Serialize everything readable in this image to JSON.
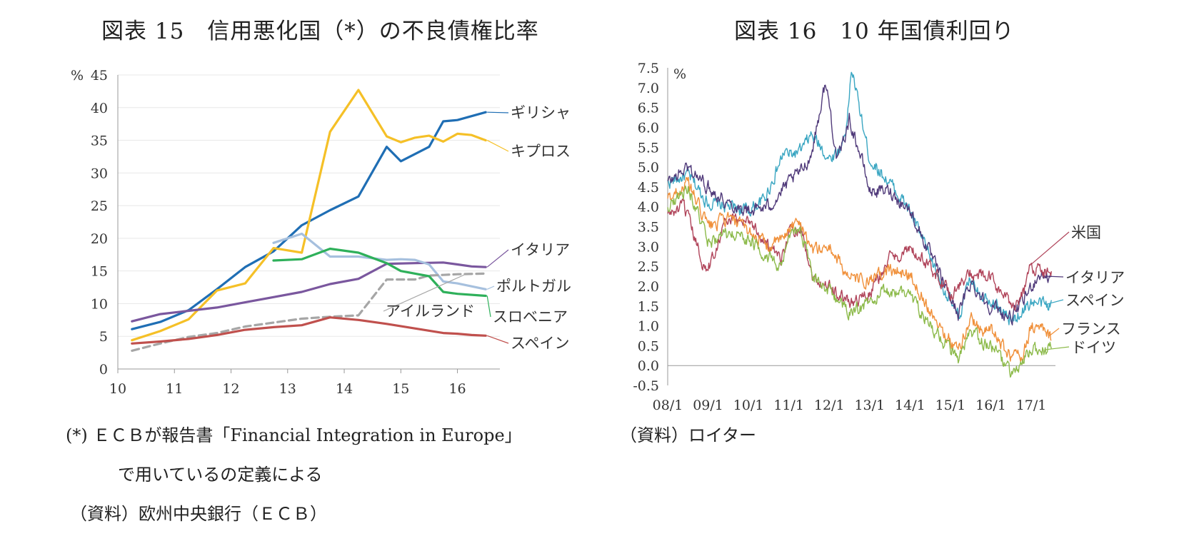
{
  "titles": {
    "left": "図表 15　信用悪化国（*）の不良債権比率",
    "right": "図表 16　10 年国債利回り"
  },
  "notes": {
    "left_line1": "(*) ＥＣＢが報告書「Financial Integration in Europe」",
    "left_line2": "で用いているの定義による",
    "left_source": "（資料）欧州中央銀行（ＥＣＢ）",
    "right_source": "（資料）ロイター"
  },
  "colors": {
    "greece": "#1f6eb4",
    "cyprus": "#f5c027",
    "italy": "#7a579e",
    "portugal": "#a6c0de",
    "ireland": "#a6a6a6",
    "slovenia": "#2eb05a",
    "spain": "#c0504d",
    "us": "#b0445a",
    "italy_r": "#503a7a",
    "spain_r": "#3aa6c2",
    "france": "#f0903a",
    "germany": "#8cba4a"
  },
  "chart_data": [
    {
      "type": "line",
      "ylabel": "%",
      "ylim": [
        0,
        45
      ],
      "xlim": [
        10,
        16.75
      ],
      "yticks": [
        "0",
        "5",
        "10",
        "15",
        "20",
        "25",
        "30",
        "35",
        "40",
        "45"
      ],
      "xticks": [
        "10",
        "11",
        "12",
        "13",
        "14",
        "15",
        "16"
      ],
      "series": [
        {
          "name": "ギリシャ",
          "color": "#1f6eb4",
          "dashed": false,
          "points": [
            [
              10.25,
              6.1
            ],
            [
              10.75,
              7.2
            ],
            [
              11.25,
              9.0
            ],
            [
              11.75,
              12.2
            ],
            [
              12.25,
              15.6
            ],
            [
              12.75,
              18.0
            ],
            [
              13.25,
              22.0
            ],
            [
              13.75,
              24.3
            ],
            [
              14.25,
              26.4
            ],
            [
              14.75,
              34.0
            ],
            [
              15.0,
              31.8
            ],
            [
              15.5,
              34.0
            ],
            [
              15.75,
              37.9
            ],
            [
              16.0,
              38.1
            ],
            [
              16.5,
              39.3
            ]
          ]
        },
        {
          "name": "キプロス",
          "color": "#f5c027",
          "dashed": false,
          "points": [
            [
              10.25,
              4.4
            ],
            [
              10.75,
              5.8
            ],
            [
              11.25,
              7.6
            ],
            [
              11.75,
              12.0
            ],
            [
              12.25,
              13.1
            ],
            [
              12.75,
              18.5
            ],
            [
              13.25,
              17.8
            ],
            [
              13.75,
              36.3
            ],
            [
              14.25,
              42.7
            ],
            [
              14.75,
              35.6
            ],
            [
              15.0,
              34.7
            ],
            [
              15.25,
              35.4
            ],
            [
              15.5,
              35.7
            ],
            [
              15.75,
              34.8
            ],
            [
              16.0,
              36.0
            ],
            [
              16.25,
              35.8
            ],
            [
              16.5,
              35.0
            ]
          ]
        },
        {
          "name": "イタリア",
          "color": "#7a579e",
          "dashed": false,
          "points": [
            [
              10.25,
              7.3
            ],
            [
              10.75,
              8.4
            ],
            [
              11.25,
              8.9
            ],
            [
              11.75,
              9.4
            ],
            [
              12.25,
              10.2
            ],
            [
              12.75,
              11.0
            ],
            [
              13.25,
              11.8
            ],
            [
              13.75,
              13.0
            ],
            [
              14.25,
              13.8
            ],
            [
              14.75,
              16.1
            ],
            [
              15.25,
              16.2
            ],
            [
              15.75,
              16.3
            ],
            [
              16.0,
              16.0
            ],
            [
              16.25,
              15.7
            ],
            [
              16.5,
              15.6
            ]
          ]
        },
        {
          "name": "ポルトガル",
          "color": "#a6c0de",
          "dashed": false,
          "points": [
            [
              12.75,
              19.3
            ],
            [
              13.25,
              20.7
            ],
            [
              13.75,
              17.2
            ],
            [
              14.25,
              17.2
            ],
            [
              14.75,
              16.7
            ],
            [
              15.0,
              16.8
            ],
            [
              15.25,
              16.7
            ],
            [
              15.5,
              16.0
            ],
            [
              15.75,
              13.4
            ],
            [
              16.0,
              13.1
            ],
            [
              16.5,
              12.2
            ]
          ]
        },
        {
          "name": "アイルランド",
          "color": "#a6a6a6",
          "dashed": true,
          "points": [
            [
              10.25,
              2.8
            ],
            [
              10.75,
              3.9
            ],
            [
              11.25,
              4.9
            ],
            [
              11.75,
              5.5
            ],
            [
              12.25,
              6.5
            ],
            [
              12.75,
              7.1
            ],
            [
              13.25,
              7.7
            ],
            [
              13.75,
              8.0
            ],
            [
              14.25,
              8.2
            ],
            [
              14.75,
              13.7
            ],
            [
              15.25,
              13.7
            ],
            [
              15.5,
              14.3
            ],
            [
              15.75,
              14.4
            ],
            [
              16.0,
              14.5
            ],
            [
              16.5,
              14.6
            ]
          ]
        },
        {
          "name": "スロベニア",
          "color": "#2eb05a",
          "dashed": false,
          "points": [
            [
              12.75,
              16.6
            ],
            [
              13.25,
              16.8
            ],
            [
              13.75,
              18.4
            ],
            [
              14.25,
              17.8
            ],
            [
              14.75,
              16.2
            ],
            [
              15.0,
              15.0
            ],
            [
              15.5,
              14.2
            ],
            [
              15.75,
              11.8
            ],
            [
              16.0,
              11.5
            ],
            [
              16.5,
              11.2
            ]
          ]
        },
        {
          "name": "スペイン",
          "color": "#c0504d",
          "dashed": false,
          "points": [
            [
              10.25,
              3.9
            ],
            [
              10.75,
              4.2
            ],
            [
              11.25,
              4.6
            ],
            [
              11.75,
              5.2
            ],
            [
              12.25,
              6.0
            ],
            [
              12.75,
              6.4
            ],
            [
              13.25,
              6.7
            ],
            [
              13.75,
              7.9
            ],
            [
              14.25,
              7.5
            ],
            [
              14.75,
              6.9
            ],
            [
              15.25,
              6.2
            ],
            [
              15.75,
              5.5
            ],
            [
              16.0,
              5.4
            ],
            [
              16.25,
              5.2
            ],
            [
              16.5,
              5.1
            ]
          ]
        }
      ]
    },
    {
      "type": "line",
      "ylabel": "%",
      "ylim": [
        -0.5,
        7.5
      ],
      "xlim": [
        2008,
        2017.6
      ],
      "yticks": [
        "-0.5",
        "0.0",
        "0.5",
        "1.0",
        "1.5",
        "2.0",
        "2.5",
        "3.0",
        "3.5",
        "4.0",
        "4.5",
        "5.0",
        "5.5",
        "6.0",
        "6.5",
        "7.0",
        "7.5"
      ],
      "xticks": [
        "08/1",
        "09/1",
        "10/1",
        "11/1",
        "12/1",
        "13/1",
        "14/1",
        "15/1",
        "16/1",
        "17/1"
      ],
      "series": [
        {
          "name": "スペイン",
          "color": "#3aa6c2",
          "points": [
            [
              2008,
              4.6
            ],
            [
              2008.5,
              4.8
            ],
            [
              2009,
              4.1
            ],
            [
              2009.5,
              4.0
            ],
            [
              2010,
              3.9
            ],
            [
              2010.4,
              4.2
            ],
            [
              2010.9,
              5.4
            ],
            [
              2011.0,
              5.3
            ],
            [
              2011.3,
              5.4
            ],
            [
              2011.55,
              5.8
            ],
            [
              2011.8,
              5.5
            ],
            [
              2012.0,
              5.2
            ],
            [
              2012.3,
              5.5
            ],
            [
              2012.45,
              6.2
            ],
            [
              2012.55,
              7.5
            ],
            [
              2012.8,
              6.2
            ],
            [
              2013.0,
              5.2
            ],
            [
              2013.5,
              4.6
            ],
            [
              2014.0,
              3.9
            ],
            [
              2014.5,
              2.7
            ],
            [
              2015.0,
              1.6
            ],
            [
              2015.2,
              1.2
            ],
            [
              2015.5,
              2.2
            ],
            [
              2015.8,
              1.8
            ],
            [
              2016.0,
              1.7
            ],
            [
              2016.5,
              1.1
            ],
            [
              2016.8,
              1.4
            ],
            [
              2017.0,
              1.6
            ],
            [
              2017.5,
              1.5
            ]
          ]
        },
        {
          "name": "イタリア",
          "color": "#503a7a",
          "points": [
            [
              2008,
              4.6
            ],
            [
              2008.5,
              5.0
            ],
            [
              2009,
              4.5
            ],
            [
              2009.5,
              4.1
            ],
            [
              2010,
              3.9
            ],
            [
              2010.5,
              4.0
            ],
            [
              2011.0,
              4.6
            ],
            [
              2011.3,
              4.9
            ],
            [
              2011.55,
              5.3
            ],
            [
              2011.9,
              7.1
            ],
            [
              2012.0,
              6.6
            ],
            [
              2012.2,
              5.1
            ],
            [
              2012.5,
              6.2
            ],
            [
              2012.8,
              5.2
            ],
            [
              2013.0,
              4.4
            ],
            [
              2013.5,
              4.4
            ],
            [
              2014.0,
              3.9
            ],
            [
              2014.5,
              2.8
            ],
            [
              2015.0,
              1.7
            ],
            [
              2015.2,
              1.3
            ],
            [
              2015.5,
              2.1
            ],
            [
              2015.8,
              1.7
            ],
            [
              2016.0,
              1.5
            ],
            [
              2016.5,
              1.2
            ],
            [
              2016.8,
              1.6
            ],
            [
              2017.0,
              2.0
            ],
            [
              2017.2,
              2.3
            ],
            [
              2017.5,
              2.2
            ]
          ]
        },
        {
          "name": "米国",
          "color": "#b0445a",
          "points": [
            [
              2008,
              3.8
            ],
            [
              2008.4,
              4.0
            ],
            [
              2008.9,
              2.5
            ],
            [
              2009.0,
              2.4
            ],
            [
              2009.4,
              3.6
            ],
            [
              2010.0,
              3.7
            ],
            [
              2010.5,
              3.0
            ],
            [
              2010.8,
              2.6
            ],
            [
              2011.0,
              3.4
            ],
            [
              2011.3,
              3.5
            ],
            [
              2011.6,
              2.2
            ],
            [
              2012.0,
              2.0
            ],
            [
              2012.5,
              1.6
            ],
            [
              2013.0,
              1.8
            ],
            [
              2013.5,
              2.7
            ],
            [
              2014.0,
              2.9
            ],
            [
              2014.5,
              2.5
            ],
            [
              2015.0,
              1.8
            ],
            [
              2015.5,
              2.3
            ],
            [
              2016.0,
              2.2
            ],
            [
              2016.5,
              1.5
            ],
            [
              2016.8,
              1.8
            ],
            [
              2017.0,
              2.5
            ],
            [
              2017.3,
              2.4
            ],
            [
              2017.5,
              2.3
            ]
          ]
        },
        {
          "name": "フランス",
          "color": "#f0903a",
          "points": [
            [
              2008,
              4.2
            ],
            [
              2008.5,
              4.6
            ],
            [
              2009,
              3.5
            ],
            [
              2009.5,
              3.7
            ],
            [
              2010,
              3.4
            ],
            [
              2010.5,
              3.0
            ],
            [
              2010.9,
              3.2
            ],
            [
              2011.0,
              3.5
            ],
            [
              2011.3,
              3.6
            ],
            [
              2011.6,
              2.9
            ],
            [
              2012.0,
              3.0
            ],
            [
              2012.5,
              2.2
            ],
            [
              2013.0,
              2.1
            ],
            [
              2013.5,
              2.4
            ],
            [
              2014.0,
              2.3
            ],
            [
              2014.5,
              1.4
            ],
            [
              2015.0,
              0.6
            ],
            [
              2015.2,
              0.4
            ],
            [
              2015.5,
              1.2
            ],
            [
              2015.8,
              0.9
            ],
            [
              2016.0,
              0.9
            ],
            [
              2016.5,
              0.2
            ],
            [
              2016.8,
              0.3
            ],
            [
              2017.0,
              1.0
            ],
            [
              2017.3,
              0.9
            ],
            [
              2017.5,
              0.7
            ]
          ]
        },
        {
          "name": "ドイツ",
          "color": "#8cba4a",
          "points": [
            [
              2008,
              4.0
            ],
            [
              2008.5,
              4.5
            ],
            [
              2009,
              3.1
            ],
            [
              2009.5,
              3.3
            ],
            [
              2010,
              3.2
            ],
            [
              2010.5,
              2.7
            ],
            [
              2010.8,
              2.4
            ],
            [
              2011.0,
              3.2
            ],
            [
              2011.3,
              3.4
            ],
            [
              2011.6,
              2.3
            ],
            [
              2012.0,
              1.9
            ],
            [
              2012.5,
              1.3
            ],
            [
              2013.0,
              1.6
            ],
            [
              2013.5,
              1.9
            ],
            [
              2014.0,
              1.8
            ],
            [
              2014.5,
              1.0
            ],
            [
              2015.0,
              0.4
            ],
            [
              2015.2,
              0.1
            ],
            [
              2015.5,
              0.8
            ],
            [
              2015.8,
              0.6
            ],
            [
              2016.0,
              0.5
            ],
            [
              2016.5,
              -0.2
            ],
            [
              2016.7,
              -0.1
            ],
            [
              2017.0,
              0.4
            ],
            [
              2017.3,
              0.4
            ],
            [
              2017.5,
              0.4
            ]
          ]
        }
      ]
    }
  ]
}
